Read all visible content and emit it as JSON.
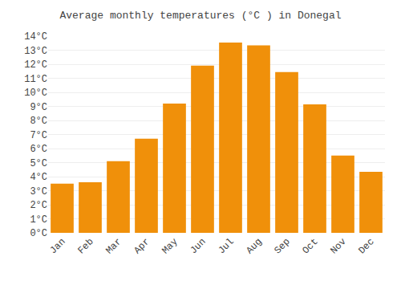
{
  "chart_data": {
    "type": "bar",
    "title": "Average monthly temperatures (°C ) in Donegal",
    "categories": [
      "Jan",
      "Feb",
      "Mar",
      "Apr",
      "May",
      "Jun",
      "Jul",
      "Aug",
      "Sep",
      "Oct",
      "Nov",
      "Dec"
    ],
    "values": [
      3.5,
      3.6,
      5.1,
      6.7,
      9.2,
      11.9,
      13.55,
      13.35,
      11.45,
      9.15,
      5.5,
      4.35
    ],
    "color": "#F0900A",
    "ylim": [
      0,
      14
    ],
    "yticks": [
      {
        "value": 0,
        "label": "0°C"
      },
      {
        "value": 1,
        "label": "1°C"
      },
      {
        "value": 2,
        "label": "2°C"
      },
      {
        "value": 3,
        "label": "3°C"
      },
      {
        "value": 4,
        "label": "4°C"
      },
      {
        "value": 5,
        "label": "5°C"
      },
      {
        "value": 6,
        "label": "6°C"
      },
      {
        "value": 7,
        "label": "7°C"
      },
      {
        "value": 8,
        "label": "8°C"
      },
      {
        "value": 9,
        "label": "9°C"
      },
      {
        "value": 10,
        "label": "10°C"
      },
      {
        "value": 11,
        "label": "11°C"
      },
      {
        "value": 12,
        "label": "12°C"
      },
      {
        "value": 13,
        "label": "13°C"
      },
      {
        "value": 14,
        "label": "14°C"
      }
    ],
    "grid": true
  }
}
